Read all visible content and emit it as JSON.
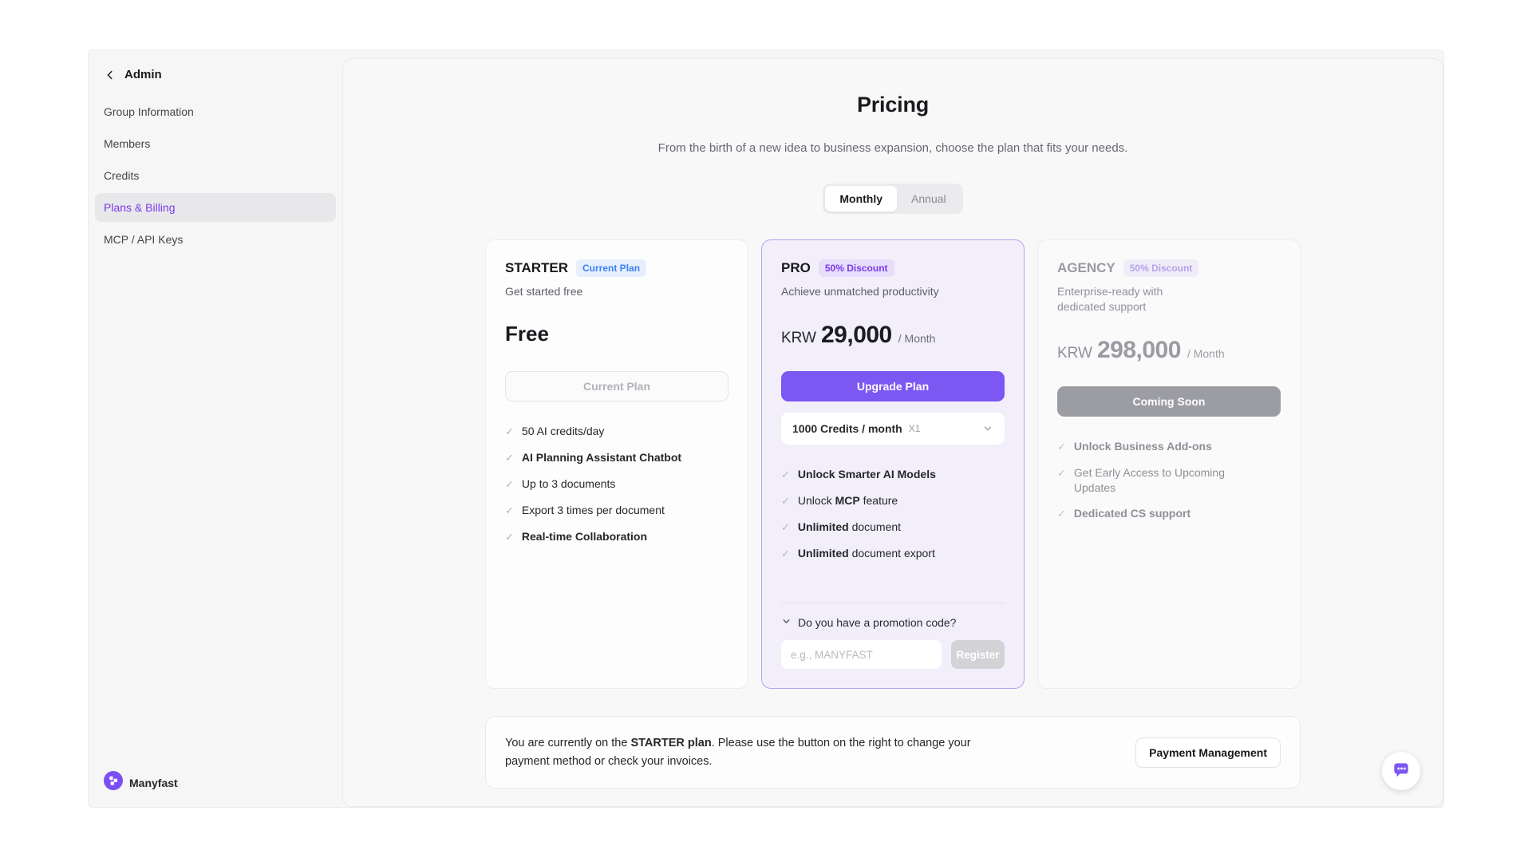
{
  "sidebar": {
    "back_label": "Admin",
    "items": [
      {
        "label": "Group Information",
        "active": false
      },
      {
        "label": "Members",
        "active": false
      },
      {
        "label": "Credits",
        "active": false
      },
      {
        "label": "Plans & Billing",
        "active": true
      },
      {
        "label": "MCP / API Keys",
        "active": false
      }
    ],
    "brand": "Manyfast"
  },
  "header": {
    "title": "Pricing",
    "subtitle": "From the birth of a new idea to business expansion, choose the plan that fits your needs."
  },
  "billing_toggle": {
    "monthly": "Monthly",
    "annual": "Annual",
    "selected": "Monthly"
  },
  "plans": {
    "starter": {
      "name": "STARTER",
      "badge": "Current Plan",
      "description": "Get started free",
      "price": "Free",
      "button": "Current Plan",
      "features": [
        {
          "segments": [
            {
              "text": "50 AI credits/day",
              "bold": false
            }
          ]
        },
        {
          "segments": [
            {
              "text": "AI Planning Assistant Chatbot",
              "bold": true
            }
          ]
        },
        {
          "segments": [
            {
              "text": "Up to 3 documents",
              "bold": false
            }
          ]
        },
        {
          "segments": [
            {
              "text": "Export 3 times per document",
              "bold": false
            }
          ]
        },
        {
          "segments": [
            {
              "text": "Real-time Collaboration",
              "bold": true
            }
          ]
        }
      ]
    },
    "pro": {
      "name": "PRO",
      "badge": "50% Discount",
      "description": "Achieve unmatched productivity",
      "currency": "KRW",
      "price": "29,000",
      "period": "/ Month",
      "button": "Upgrade Plan",
      "credits_select": {
        "value": "1000 Credits / month",
        "multiplier": "X1"
      },
      "features": [
        {
          "segments": [
            {
              "text": "Unlock Smarter AI Models",
              "bold": true
            }
          ]
        },
        {
          "segments": [
            {
              "text": "Unlock ",
              "bold": false
            },
            {
              "text": "MCP",
              "bold": true
            },
            {
              "text": " feature",
              "bold": false
            }
          ]
        },
        {
          "segments": [
            {
              "text": "Unlimited",
              "bold": true
            },
            {
              "text": " document",
              "bold": false
            }
          ]
        },
        {
          "segments": [
            {
              "text": "Unlimited",
              "bold": true
            },
            {
              "text": " document export",
              "bold": false
            }
          ]
        }
      ],
      "promo": {
        "label": "Do you have a promotion code?",
        "placeholder": "e.g., MANYFAST",
        "register": "Register"
      }
    },
    "agency": {
      "name": "AGENCY",
      "badge": "50% Discount",
      "description": "Enterprise-ready with dedicated support",
      "currency": "KRW",
      "price": "298,000",
      "period": "/ Month",
      "button": "Coming Soon",
      "features": [
        {
          "segments": [
            {
              "text": "Unlock Business Add-ons",
              "bold": true
            }
          ]
        },
        {
          "segments": [
            {
              "text": "Get Early Access to Upcoming Updates",
              "bold": false
            }
          ]
        },
        {
          "segments": [
            {
              "text": "Dedicated CS support",
              "bold": true
            }
          ]
        }
      ]
    }
  },
  "footer_banner": {
    "text_prefix": "You are currently on the ",
    "text_bold": "STARTER plan",
    "text_suffix": ". Please use the button on the right to change your payment method or check your invoices.",
    "button": "Payment Management"
  },
  "icons": {
    "check": "✓",
    "back": "chevron-left",
    "select": "chevron-down",
    "promo": "chevron-down",
    "chat": "speech-bubble"
  },
  "colors": {
    "accent_purple": "#7c57f2",
    "active_link_purple": "#7c3aed",
    "badge_blue": "#3b82f6",
    "pro_card_bg": "#f2effb",
    "pro_card_border": "#b5a3ef",
    "disabled_gray": "#9c9ca3"
  }
}
